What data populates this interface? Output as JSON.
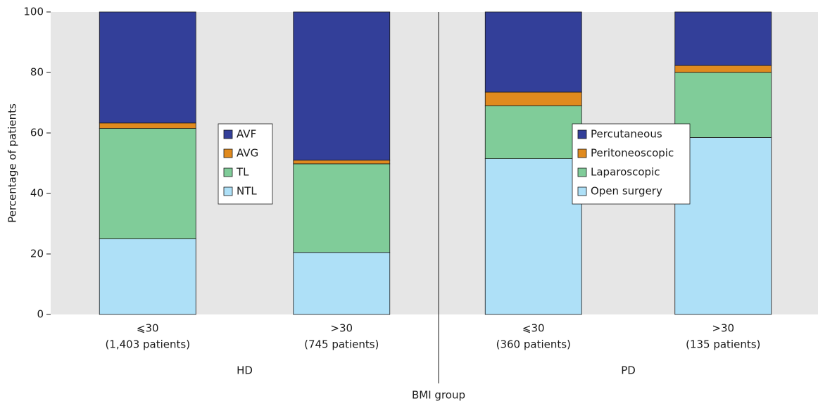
{
  "chart_data": {
    "type": "bar",
    "stacked": true,
    "ylabel": "Percentage of patients",
    "xlabel": "BMI group",
    "ylim": [
      0,
      100
    ],
    "yticks": [
      0,
      20,
      40,
      60,
      80,
      100
    ],
    "panels": [
      {
        "label": "HD",
        "categories": [
          [
            "⩽30",
            "(1,403 patients)"
          ],
          [
            ">30",
            "(745 patients)"
          ]
        ],
        "series": [
          {
            "name": "NTL",
            "color": "#aee0f7",
            "values": [
              25,
              20.5
            ]
          },
          {
            "name": "TL",
            "color": "#80cc99",
            "values": [
              36.5,
              29.3
            ]
          },
          {
            "name": "AVG",
            "color": "#e08a1e",
            "values": [
              1.8,
              1.2
            ]
          },
          {
            "name": "AVF",
            "color": "#333f99",
            "values": [
              36.7,
              49
            ]
          }
        ]
      },
      {
        "label": "PD",
        "categories": [
          [
            "⩽30",
            "(360 patients)"
          ],
          [
            ">30",
            "(135 patients)"
          ]
        ],
        "series": [
          {
            "name": "Open surgery",
            "color": "#aee0f7",
            "values": [
              51.5,
              58.5
            ]
          },
          {
            "name": "Laparoscopic",
            "color": "#80cc99",
            "values": [
              17.5,
              21.5
            ]
          },
          {
            "name": "Peritoneoscopic",
            "color": "#e08a1e",
            "values": [
              4.5,
              2.3
            ]
          },
          {
            "name": "Percutaneous",
            "color": "#333f99",
            "values": [
              26.5,
              17.7
            ]
          }
        ]
      }
    ]
  }
}
